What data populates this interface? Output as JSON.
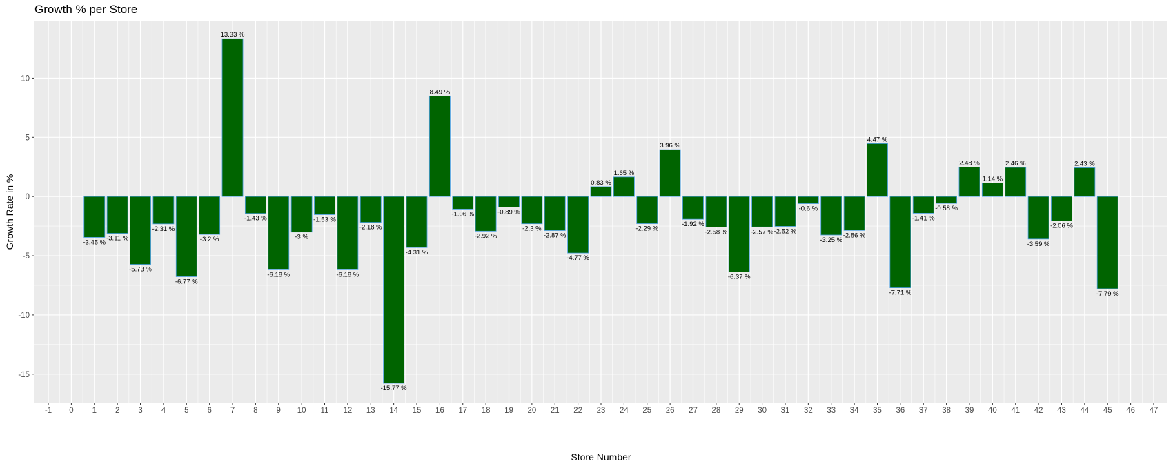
{
  "chart_data": {
    "type": "bar",
    "title": "Growth % per Store",
    "xlabel": "Store Number",
    "ylabel": "Growth Rate in %",
    "xlim": [
      -1.6,
      47.6
    ],
    "ylim": [
      -17.4,
      14.8
    ],
    "x_ticks": [
      -1,
      0,
      1,
      2,
      3,
      4,
      5,
      6,
      7,
      8,
      9,
      10,
      11,
      12,
      13,
      14,
      15,
      16,
      17,
      18,
      19,
      20,
      21,
      22,
      23,
      24,
      25,
      26,
      27,
      28,
      29,
      30,
      31,
      32,
      33,
      34,
      35,
      36,
      37,
      38,
      39,
      40,
      41,
      42,
      43,
      44,
      45,
      46,
      47
    ],
    "y_ticks": [
      -15,
      -10,
      -5,
      0,
      5,
      10
    ],
    "grid": true,
    "background": "#ebebeb",
    "bar_color": "#006400",
    "bar_outline": "#4a9fe0",
    "categories": [
      1,
      2,
      3,
      4,
      5,
      6,
      7,
      8,
      9,
      10,
      11,
      12,
      13,
      14,
      15,
      16,
      17,
      18,
      19,
      20,
      21,
      22,
      23,
      24,
      25,
      26,
      27,
      28,
      29,
      30,
      31,
      32,
      33,
      34,
      35,
      36,
      37,
      38,
      39,
      40,
      41,
      42,
      43,
      44,
      45
    ],
    "values": [
      -3.45,
      -3.11,
      -5.73,
      -2.31,
      -6.77,
      -3.2,
      13.33,
      -1.43,
      -6.18,
      -3,
      -1.53,
      -6.18,
      -2.18,
      -15.77,
      -4.31,
      8.49,
      -1.06,
      -2.92,
      -0.89,
      -2.3,
      -2.87,
      -4.77,
      0.83,
      1.65,
      -2.29,
      3.96,
      -1.92,
      -2.58,
      -6.37,
      -2.57,
      -2.52,
      -0.6,
      -3.25,
      -2.86,
      4.47,
      -7.71,
      -1.41,
      -0.58,
      2.48,
      1.14,
      2.46,
      -3.59,
      -2.06,
      2.43,
      -7.79
    ],
    "data_labels": [
      "-3.45 %",
      "-3.11 %",
      "-5.73 %",
      "-2.31 %",
      "-6.77 %",
      "-3.2 %",
      "13.33 %",
      "-1.43 %",
      "-6.18 %",
      "-3 %",
      "-1.53 %",
      "-6.18 %",
      "-2.18 %",
      "-15.77 %",
      "-4.31 %",
      "8.49 %",
      "-1.06 %",
      "-2.92 %",
      "-0.89 %",
      "-2.3 %",
      "-2.87 %",
      "-4.77 %",
      "0.83 %",
      "1.65 %",
      "-2.29 %",
      "3.96 %",
      "-1.92 %",
      "-2.58 %",
      "-6.37 %",
      "-2.57 %",
      "-2.52 %",
      "-0.6 %",
      "-3.25 %",
      "-2.86 %",
      "4.47 %",
      "-7.71 %",
      "-1.41 %",
      "-0.58 %",
      "2.48 %",
      "1.14 %",
      "2.46 %",
      "-3.59 %",
      "-2.06 %",
      "2.43 %",
      "-7.79 %"
    ]
  }
}
